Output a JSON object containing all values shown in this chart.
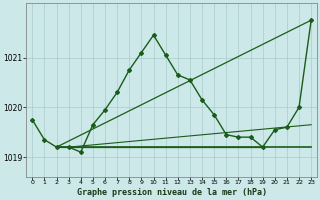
{
  "background_color": "#cce8e8",
  "grid_color": "#aacccc",
  "line_color": "#1a5c1a",
  "ylim": [
    1018.6,
    1022.1
  ],
  "xlim": [
    -0.5,
    23.5
  ],
  "yticks": [
    1019,
    1020,
    1021
  ],
  "xticks": [
    0,
    1,
    2,
    3,
    4,
    5,
    6,
    7,
    8,
    9,
    10,
    11,
    12,
    13,
    14,
    15,
    16,
    17,
    18,
    19,
    20,
    21,
    22,
    23
  ],
  "xlabel": "Graphe pression niveau de la mer (hPa)",
  "series": [
    {
      "x": [
        0,
        1,
        2,
        3,
        4,
        5,
        6,
        7,
        8,
        9,
        10,
        11,
        12,
        13,
        14,
        15,
        16,
        17,
        18,
        19,
        20,
        21,
        22,
        23
      ],
      "y": [
        1019.75,
        1019.35,
        1019.2,
        1019.2,
        1019.1,
        1019.65,
        1019.95,
        1020.3,
        1020.75,
        1021.1,
        1021.45,
        1021.05,
        1020.65,
        1020.55,
        1020.15,
        1019.85,
        1019.45,
        1019.4,
        1019.4,
        1019.2,
        1019.55,
        1019.6,
        1020.0,
        1021.75
      ],
      "linewidth": 1.0,
      "marker": "D",
      "markersize": 2.0
    },
    {
      "x": [
        2,
        23
      ],
      "y": [
        1019.2,
        1019.2
      ],
      "linewidth": 1.2,
      "marker": null,
      "markersize": 0
    },
    {
      "x": [
        2,
        23
      ],
      "y": [
        1019.2,
        1021.75
      ],
      "linewidth": 0.9,
      "marker": null,
      "markersize": 0
    },
    {
      "x": [
        2,
        19
      ],
      "y": [
        1019.2,
        1019.2
      ],
      "linewidth": 0.9,
      "marker": null,
      "markersize": 0
    },
    {
      "x": [
        3,
        23
      ],
      "y": [
        1019.2,
        1019.65
      ],
      "linewidth": 0.8,
      "marker": null,
      "markersize": 0
    }
  ]
}
